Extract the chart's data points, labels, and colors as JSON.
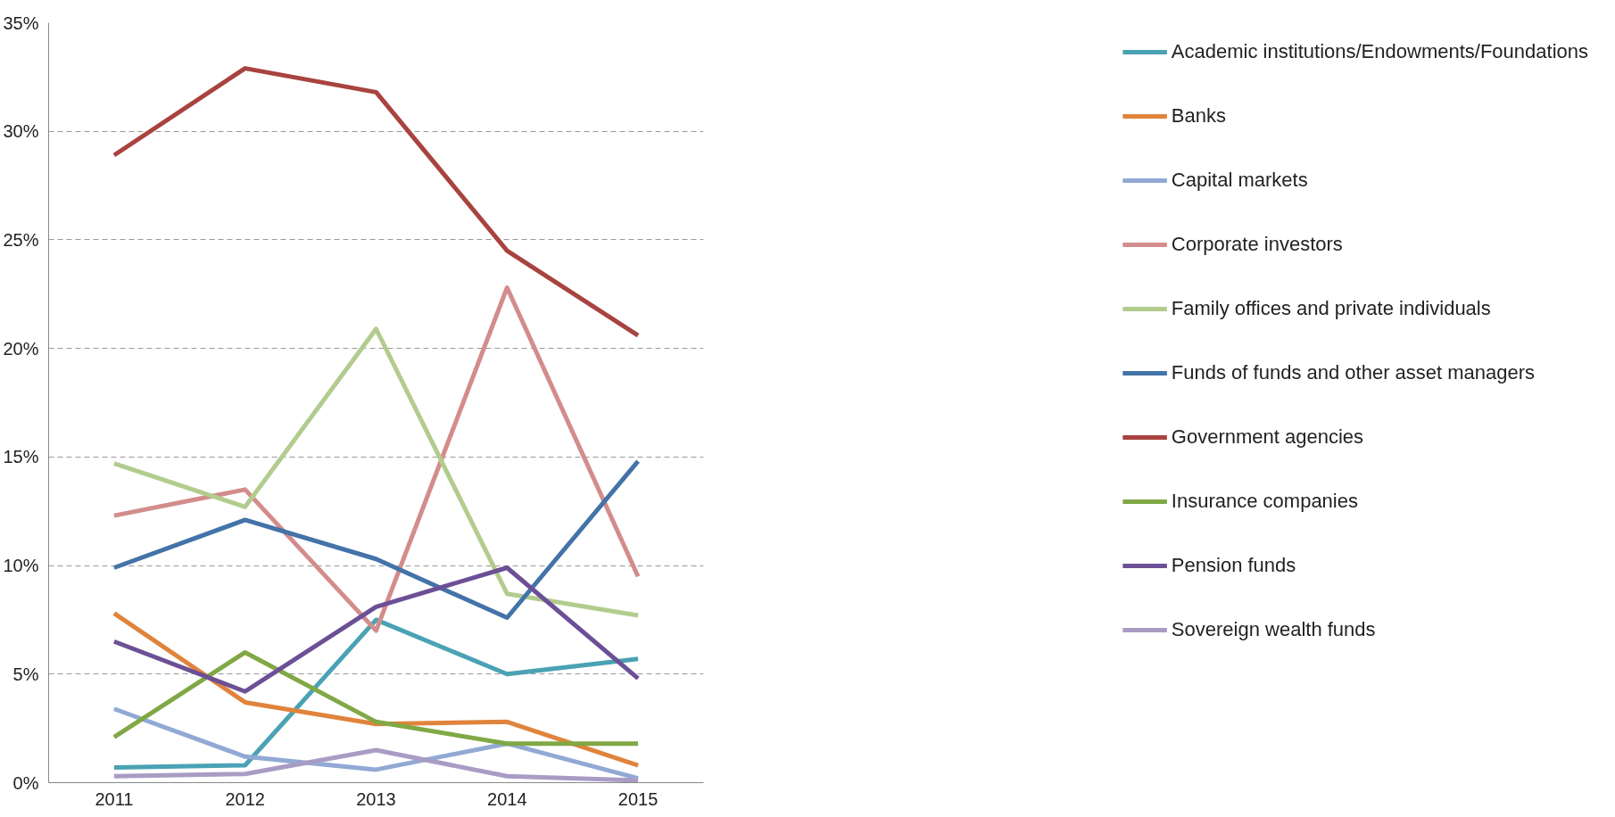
{
  "chart_data": {
    "type": "line",
    "categories": [
      "2011",
      "2012",
      "2013",
      "2014",
      "2015"
    ],
    "series": [
      {
        "name": "Academic institutions/Endowments/Foundations",
        "color": "#4aa2b4",
        "values": [
          0.7,
          0.8,
          7.5,
          5.0,
          5.7
        ]
      },
      {
        "name": "Banks",
        "color": "#e0843c",
        "values": [
          7.8,
          3.7,
          2.7,
          2.8,
          0.8
        ]
      },
      {
        "name": "Capital markets",
        "color": "#91a9d4",
        "values": [
          3.4,
          1.2,
          0.6,
          1.8,
          0.2
        ]
      },
      {
        "name": "Corporate investors",
        "color": "#d38c8c",
        "values": [
          12.3,
          13.5,
          7.0,
          22.8,
          9.5
        ]
      },
      {
        "name": "Family offices and private individuals",
        "color": "#b2cc8e",
        "values": [
          14.7,
          12.7,
          20.9,
          8.7,
          7.7
        ]
      },
      {
        "name": "Funds of funds and other asset managers",
        "color": "#4373a8",
        "values": [
          9.9,
          12.1,
          10.3,
          7.6,
          14.8
        ]
      },
      {
        "name": "Government agencies",
        "color": "#a8433f",
        "values": [
          28.9,
          32.9,
          31.8,
          24.5,
          20.6
        ]
      },
      {
        "name": "Insurance companies",
        "color": "#80a845",
        "values": [
          2.1,
          6.0,
          2.8,
          1.8,
          1.8
        ]
      },
      {
        "name": "Pension funds",
        "color": "#6c5096",
        "values": [
          6.5,
          4.2,
          8.1,
          9.9,
          4.8
        ]
      },
      {
        "name": "Sovereign wealth funds",
        "color": "#a99cc4",
        "values": [
          0.3,
          0.4,
          1.5,
          0.3,
          0.1
        ]
      }
    ],
    "ylim": [
      0,
      35
    ],
    "yticks": [
      {
        "value": 0,
        "label": "0%"
      },
      {
        "value": 5,
        "label": "5%"
      },
      {
        "value": 10,
        "label": "10%"
      },
      {
        "value": 15,
        "label": "15%"
      },
      {
        "value": 20,
        "label": "20%"
      },
      {
        "value": 25,
        "label": "25%"
      },
      {
        "value": 30,
        "label": "30%"
      },
      {
        "value": 35,
        "label": "35%"
      }
    ],
    "grid": "y",
    "legend": "right",
    "marker": "none",
    "line_style": "solid"
  }
}
